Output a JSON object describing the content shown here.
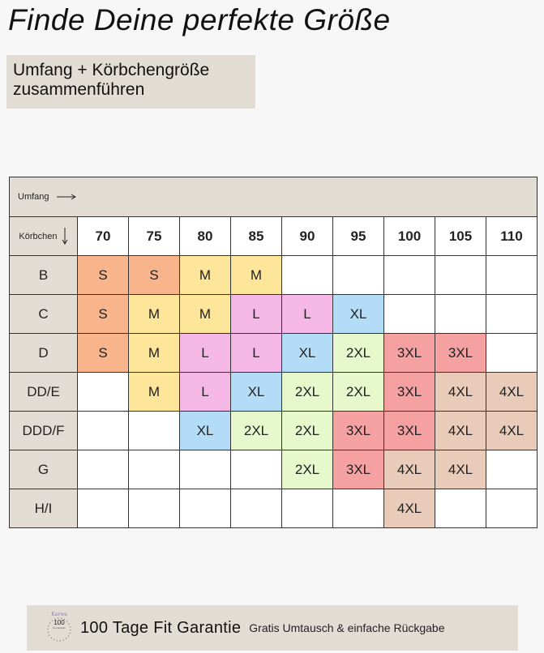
{
  "page": {
    "title": "Finde Deine perfekte Größe",
    "subtitle": "Umfang + Körbchengröße zusammenführen"
  },
  "table": {
    "umfang_label": "Umfang",
    "koerbchen_label": "Körbchen",
    "columns": [
      "70",
      "75",
      "80",
      "85",
      "90",
      "95",
      "100",
      "105",
      "110"
    ],
    "rows": [
      {
        "label": "B",
        "cells": [
          "S",
          "S",
          "M",
          "M",
          "",
          "",
          "",
          "",
          ""
        ]
      },
      {
        "label": "C",
        "cells": [
          "S",
          "M",
          "M",
          "L",
          "L",
          "XL",
          "",
          "",
          ""
        ]
      },
      {
        "label": "D",
        "cells": [
          "S",
          "M",
          "L",
          "L",
          "XL",
          "2XL",
          "3XL",
          "3XL",
          ""
        ]
      },
      {
        "label": "DD/E",
        "cells": [
          "",
          "M",
          "L",
          "XL",
          "2XL",
          "2XL",
          "3XL",
          "4XL",
          "4XL"
        ]
      },
      {
        "label": "DDD/F",
        "cells": [
          "",
          "",
          "XL",
          "2XL",
          "2XL",
          "3XL",
          "3XL",
          "4XL",
          "4XL"
        ]
      },
      {
        "label": "G",
        "cells": [
          "",
          "",
          "",
          "",
          "2XL",
          "3XL",
          "4XL",
          "4XL",
          ""
        ]
      },
      {
        "label": "H/I",
        "cells": [
          "",
          "",
          "",
          "",
          "",
          "",
          "4XL",
          "",
          ""
        ]
      }
    ],
    "size_colors": {
      "S": "#f8b48a",
      "M": "#fde59a",
      "L": "#f5b8e6",
      "XL": "#b3dcf7",
      "2XL": "#e6f8cc",
      "3XL": "#f5a1a2",
      "4XL": "#e9cbb9",
      "": "#ffffff"
    },
    "label_bg": "#e2ddd4"
  },
  "banner": {
    "seal_brand": "Karwa",
    "seal_number": "100",
    "seal_subtext": "Fit Garantie",
    "main_text": "100 Tage Fit Garantie",
    "sub_text": "Gratis Umtausch & einfache Rückgabe"
  }
}
